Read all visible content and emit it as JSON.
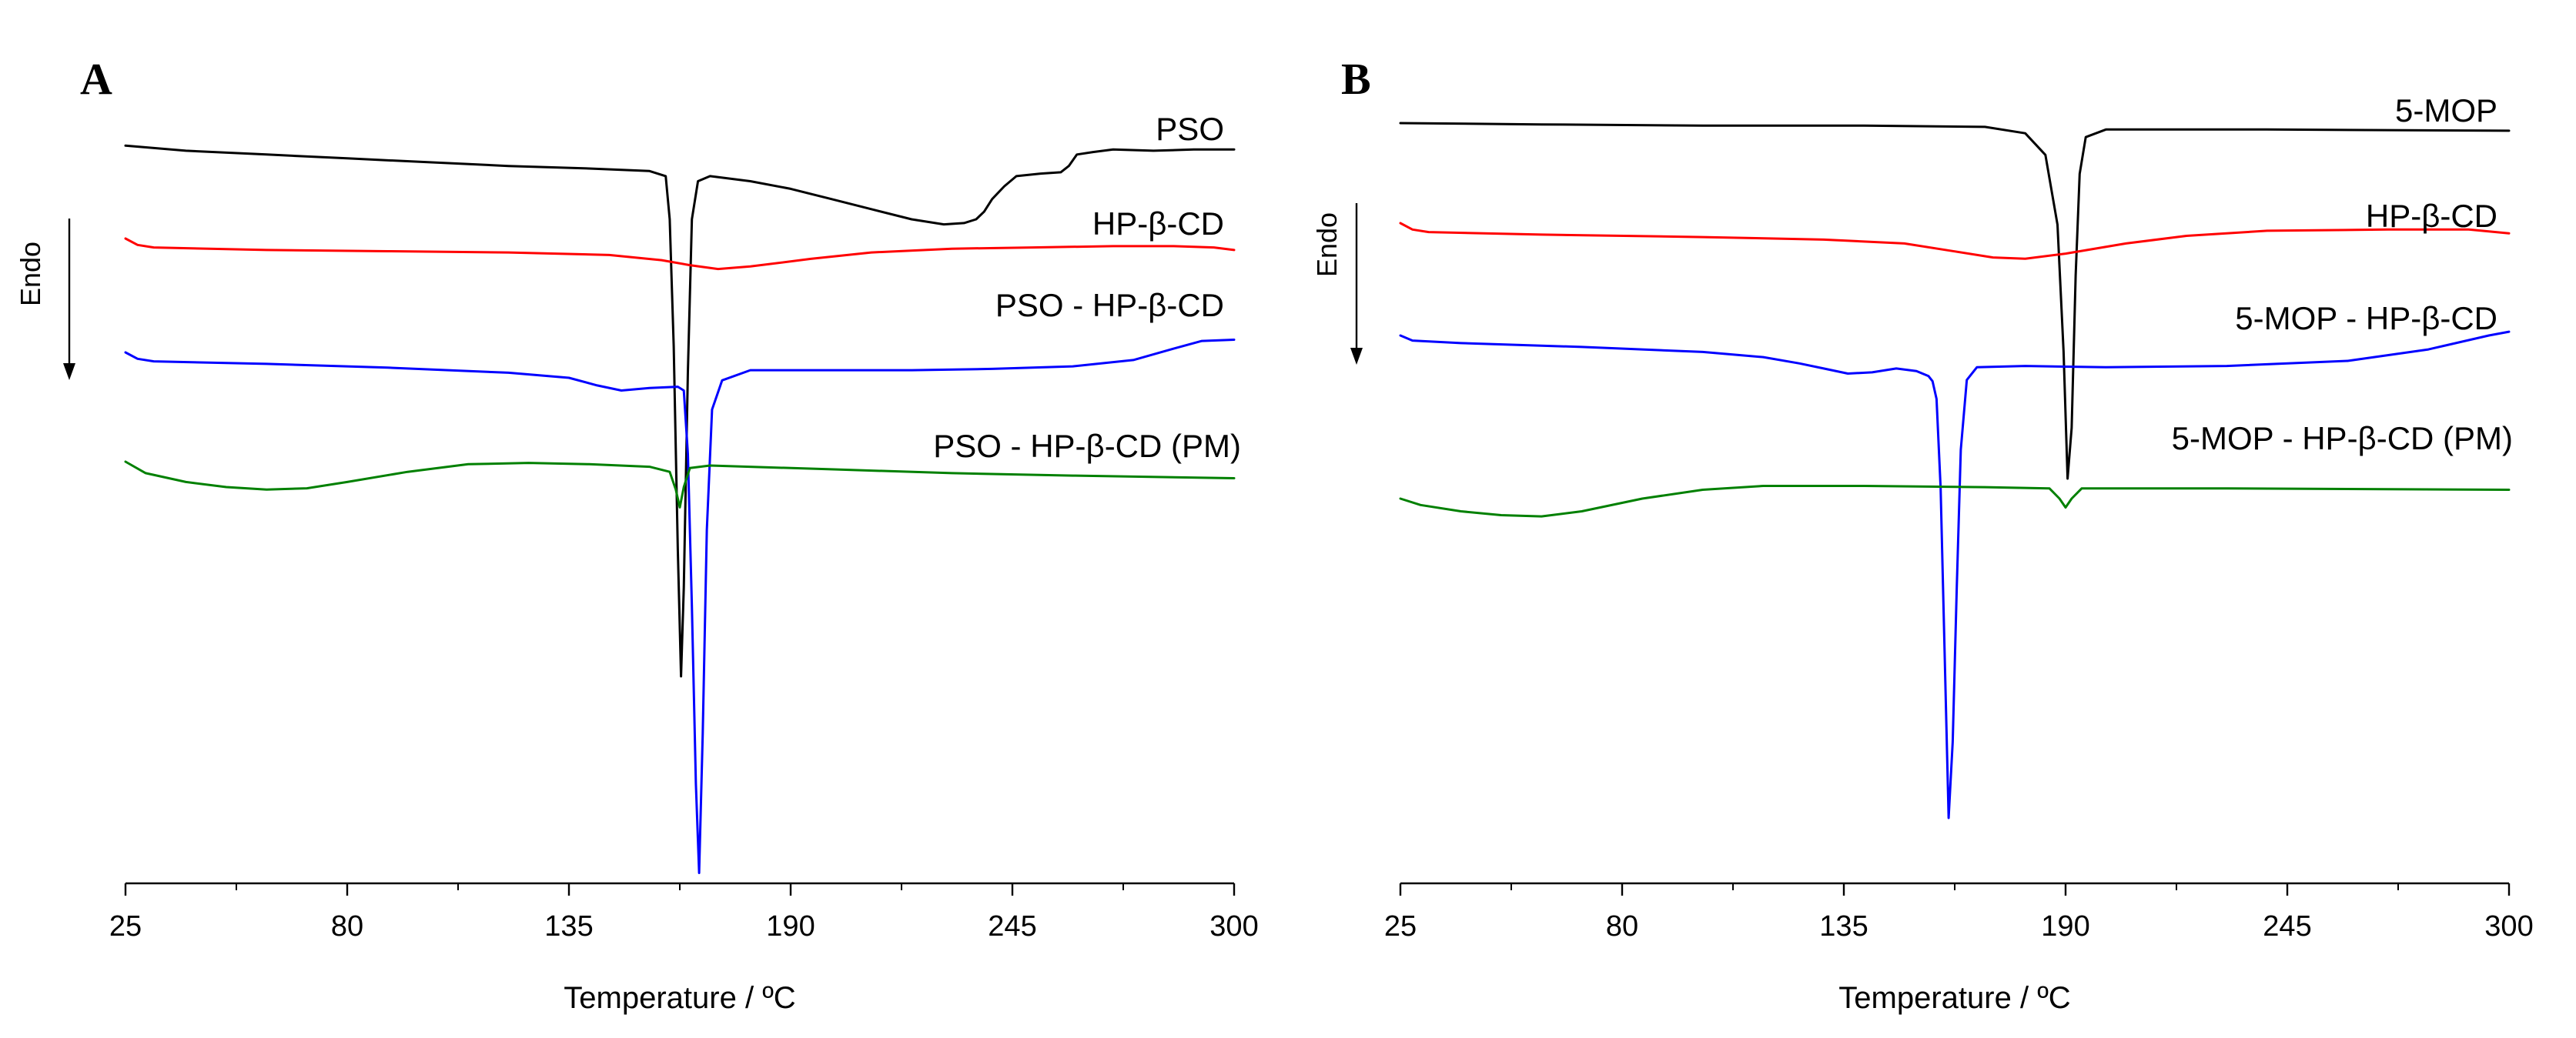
{
  "chart_data": [
    {
      "type": "line",
      "panel": "A",
      "xlabel": "Temperature / ºC",
      "endo_label": "Endo",
      "xlim": [
        25,
        300
      ],
      "x_ticks": [
        "25",
        "80",
        "135",
        "190",
        "245",
        "300"
      ],
      "y_axis_shown": false,
      "grid": false,
      "series": [
        {
          "name": "PSO",
          "color": "#000000",
          "points": [
            [
              25,
              0.2
            ],
            [
              40,
              0.6
            ],
            [
              60,
              0.9
            ],
            [
              80,
              1.2
            ],
            [
              100,
              1.5
            ],
            [
              120,
              1.8
            ],
            [
              140,
              2.0
            ],
            [
              155,
              2.2
            ],
            [
              159,
              2.6
            ],
            [
              160,
              6
            ],
            [
              161,
              16
            ],
            [
              162,
              32
            ],
            [
              162.8,
              42
            ],
            [
              163.5,
              35
            ],
            [
              164.5,
              18
            ],
            [
              165.5,
              6
            ],
            [
              167,
              3.0
            ],
            [
              170,
              2.6
            ],
            [
              180,
              3.0
            ],
            [
              190,
              3.6
            ],
            [
              200,
              4.4
            ],
            [
              210,
              5.2
            ],
            [
              220,
              6.0
            ],
            [
              228,
              6.4
            ],
            [
              233,
              6.3
            ],
            [
              236,
              6.0
            ],
            [
              238,
              5.4
            ],
            [
              240,
              4.4
            ],
            [
              243,
              3.4
            ],
            [
              246,
              2.6
            ],
            [
              252,
              2.4
            ],
            [
              257,
              2.3
            ],
            [
              259,
              1.8
            ],
            [
              261,
              0.9
            ],
            [
              265,
              0.7
            ],
            [
              270,
              0.5
            ],
            [
              280,
              0.6
            ],
            [
              290,
              0.5
            ],
            [
              300,
              0.5
            ]
          ]
        },
        {
          "name": "HP-β-CD",
          "color": "#ff0000",
          "points": [
            [
              25,
              0.0
            ],
            [
              28,
              0.5
            ],
            [
              32,
              0.7
            ],
            [
              60,
              0.9
            ],
            [
              90,
              1.0
            ],
            [
              120,
              1.1
            ],
            [
              145,
              1.3
            ],
            [
              158,
              1.7
            ],
            [
              165,
              2.1
            ],
            [
              172,
              2.4
            ],
            [
              180,
              2.2
            ],
            [
              195,
              1.6
            ],
            [
              210,
              1.1
            ],
            [
              230,
              0.8
            ],
            [
              250,
              0.7
            ],
            [
              270,
              0.6
            ],
            [
              285,
              0.6
            ],
            [
              295,
              0.7
            ],
            [
              300,
              0.9
            ]
          ]
        },
        {
          "name": "PSO - HP-β-CD",
          "color": "#0000ff",
          "points": [
            [
              25,
              0.0
            ],
            [
              28,
              0.5
            ],
            [
              32,
              0.7
            ],
            [
              60,
              0.9
            ],
            [
              90,
              1.2
            ],
            [
              120,
              1.6
            ],
            [
              135,
              2.0
            ],
            [
              142,
              2.6
            ],
            [
              148,
              3.0
            ],
            [
              155,
              2.8
            ],
            [
              162,
              2.7
            ],
            [
              163.5,
              3.0
            ],
            [
              164.5,
              8
            ],
            [
              165.5,
              20
            ],
            [
              166.5,
              34
            ],
            [
              167.3,
              41
            ],
            [
              168.2,
              30
            ],
            [
              169.2,
              14
            ],
            [
              170.5,
              4.5
            ],
            [
              173,
              2.2
            ],
            [
              180,
              1.4
            ],
            [
              200,
              1.4
            ],
            [
              220,
              1.4
            ],
            [
              240,
              1.3
            ],
            [
              260,
              1.1
            ],
            [
              275,
              0.6
            ],
            [
              285,
              -0.3
            ],
            [
              292,
              -0.9
            ],
            [
              300,
              -1.0
            ]
          ]
        },
        {
          "name": "PSO - HP-β-CD (PM)",
          "color": "#008000",
          "points": [
            [
              25,
              0.0
            ],
            [
              30,
              0.9
            ],
            [
              40,
              1.6
            ],
            [
              50,
              2.0
            ],
            [
              60,
              2.2
            ],
            [
              70,
              2.1
            ],
            [
              80,
              1.6
            ],
            [
              95,
              0.8
            ],
            [
              110,
              0.2
            ],
            [
              125,
              0.1
            ],
            [
              140,
              0.2
            ],
            [
              155,
              0.4
            ],
            [
              160,
              0.8
            ],
            [
              161.5,
              2.2
            ],
            [
              162.5,
              3.6
            ],
            [
              163.5,
              2.0
            ],
            [
              165,
              0.5
            ],
            [
              170,
              0.3
            ],
            [
              200,
              0.6
            ],
            [
              230,
              0.9
            ],
            [
              260,
              1.1
            ],
            [
              300,
              1.3
            ]
          ]
        }
      ]
    },
    {
      "type": "line",
      "panel": "B",
      "xlabel": "Temperature / ºC",
      "endo_label": "Endo",
      "xlim": [
        25,
        300
      ],
      "x_ticks": [
        "25",
        "80",
        "135",
        "190",
        "245",
        "300"
      ],
      "y_axis_shown": false,
      "grid": false,
      "series": [
        {
          "name": "5-MOP",
          "color": "#000000",
          "points": [
            [
              25,
              0.0
            ],
            [
              60,
              0.1
            ],
            [
              100,
              0.2
            ],
            [
              140,
              0.2
            ],
            [
              170,
              0.3
            ],
            [
              180,
              0.8
            ],
            [
              185,
              2.5
            ],
            [
              188,
              8
            ],
            [
              189.5,
              18
            ],
            [
              190.5,
              28
            ],
            [
              191.5,
              24
            ],
            [
              192.5,
              12
            ],
            [
              193.5,
              4
            ],
            [
              195,
              1.1
            ],
            [
              200,
              0.5
            ],
            [
              240,
              0.5
            ],
            [
              300,
              0.6
            ]
          ]
        },
        {
          "name": "HP-β-CD",
          "color": "#ff0000",
          "points": [
            [
              25,
              0.0
            ],
            [
              28,
              0.5
            ],
            [
              32,
              0.7
            ],
            [
              60,
              0.9
            ],
            [
              100,
              1.1
            ],
            [
              130,
              1.3
            ],
            [
              150,
              1.6
            ],
            [
              162,
              2.2
            ],
            [
              172,
              2.7
            ],
            [
              180,
              2.8
            ],
            [
              190,
              2.4
            ],
            [
              205,
              1.6
            ],
            [
              220,
              1.0
            ],
            [
              240,
              0.6
            ],
            [
              270,
              0.5
            ],
            [
              290,
              0.5
            ],
            [
              300,
              0.8
            ]
          ]
        },
        {
          "name": "5-MOP - HP-β-CD",
          "color": "#0000ff",
          "points": [
            [
              25,
              0.0
            ],
            [
              28,
              0.4
            ],
            [
              40,
              0.6
            ],
            [
              70,
              0.9
            ],
            [
              100,
              1.3
            ],
            [
              115,
              1.7
            ],
            [
              124,
              2.2
            ],
            [
              130,
              2.6
            ],
            [
              136,
              3.0
            ],
            [
              142,
              2.9
            ],
            [
              148,
              2.6
            ],
            [
              153,
              2.8
            ],
            [
              156,
              3.2
            ],
            [
              157,
              3.6
            ],
            [
              158,
              5
            ],
            [
              159,
              12
            ],
            [
              160,
              25
            ],
            [
              161,
              38
            ],
            [
              162,
              32
            ],
            [
              163,
              20
            ],
            [
              164,
              9
            ],
            [
              165.5,
              3.5
            ],
            [
              168,
              2.5
            ],
            [
              180,
              2.4
            ],
            [
              200,
              2.5
            ],
            [
              230,
              2.4
            ],
            [
              260,
              2.0
            ],
            [
              280,
              1.1
            ],
            [
              295,
              0.0
            ],
            [
              300,
              -0.3
            ]
          ]
        },
        {
          "name": "5-MOP - HP-β-CD (PM)",
          "color": "#008000",
          "points": [
            [
              25,
              0.0
            ],
            [
              30,
              0.5
            ],
            [
              40,
              1.0
            ],
            [
              50,
              1.3
            ],
            [
              60,
              1.4
            ],
            [
              70,
              1.0
            ],
            [
              85,
              0.0
            ],
            [
              100,
              -0.7
            ],
            [
              115,
              -1.0
            ],
            [
              140,
              -1.0
            ],
            [
              170,
              -0.9
            ],
            [
              186,
              -0.8
            ],
            [
              188.5,
              0.0
            ],
            [
              190,
              0.7
            ],
            [
              191.5,
              0.0
            ],
            [
              194,
              -0.8
            ],
            [
              230,
              -0.8
            ],
            [
              300,
              -0.7
            ]
          ]
        }
      ]
    }
  ]
}
